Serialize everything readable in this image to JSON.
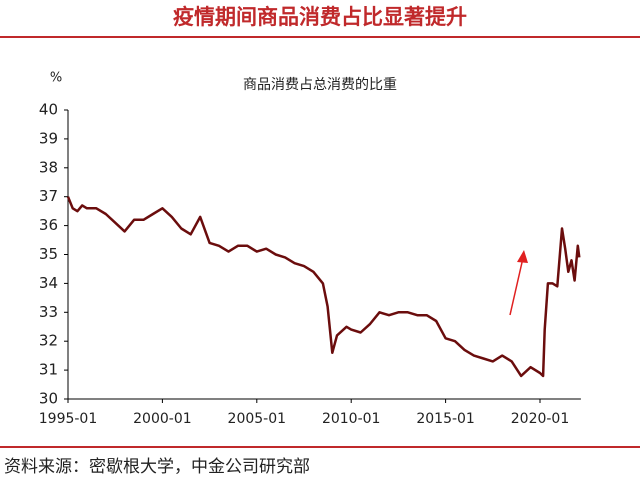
{
  "chart_data": {
    "type": "line",
    "title": "疫情期间商品消费占比显著提升",
    "subtitle": "商品消费占总消费的比重",
    "y_label": "%",
    "source": "资料来源：密歇根大学，中金公司研究部",
    "x": [
      "1995-01",
      "1995-04",
      "1995-07",
      "1995-10",
      "1996-01",
      "1996-07",
      "1997-01",
      "1997-07",
      "1998-01",
      "1998-07",
      "1999-01",
      "1999-07",
      "2000-01",
      "2000-07",
      "2001-01",
      "2001-07",
      "2002-01",
      "2002-07",
      "2003-01",
      "2003-07",
      "2004-01",
      "2004-07",
      "2005-01",
      "2005-07",
      "2006-01",
      "2006-07",
      "2007-01",
      "2007-07",
      "2008-01",
      "2008-07",
      "2008-10",
      "2009-01",
      "2009-04",
      "2009-10",
      "2010-01",
      "2010-07",
      "2011-01",
      "2011-07",
      "2012-01",
      "2012-07",
      "2013-01",
      "2013-07",
      "2014-01",
      "2014-07",
      "2015-01",
      "2015-07",
      "2016-01",
      "2016-07",
      "2017-01",
      "2017-07",
      "2018-01",
      "2018-07",
      "2019-01",
      "2019-07",
      "2020-01",
      "2020-03",
      "2020-04",
      "2020-06",
      "2020-09",
      "2020-12",
      "2021-03",
      "2021-05",
      "2021-07",
      "2021-09",
      "2021-11",
      "2022-01",
      "2022-02"
    ],
    "series": [
      {
        "name": "商品消费占总消费的比重",
        "color": "#6b0d0d",
        "values": [
          37.0,
          36.6,
          36.5,
          36.7,
          36.6,
          36.6,
          36.4,
          36.1,
          35.8,
          36.2,
          36.2,
          36.4,
          36.6,
          36.3,
          35.9,
          35.7,
          36.3,
          35.4,
          35.3,
          35.1,
          35.3,
          35.3,
          35.1,
          35.2,
          35.0,
          34.9,
          34.7,
          34.6,
          34.4,
          34.0,
          33.2,
          31.6,
          32.2,
          32.5,
          32.4,
          32.3,
          32.6,
          33.0,
          32.9,
          33.0,
          33.0,
          32.9,
          32.9,
          32.7,
          32.1,
          32.0,
          31.7,
          31.5,
          31.4,
          31.3,
          31.5,
          31.3,
          30.8,
          31.1,
          30.9,
          30.8,
          32.4,
          34.0,
          34.0,
          33.9,
          35.9,
          35.2,
          34.4,
          34.8,
          34.1,
          35.3,
          34.9
        ]
      }
    ],
    "xlim": [
      "1995-01",
      "2022-03"
    ],
    "xticks": [
      "1995-01",
      "2000-01",
      "2005-01",
      "2010-01",
      "2015-01",
      "2020-01"
    ],
    "ylim": [
      30,
      40
    ],
    "yticks": [
      30,
      31,
      32,
      33,
      34,
      35,
      36,
      37,
      38,
      39,
      40
    ],
    "grid": false
  }
}
